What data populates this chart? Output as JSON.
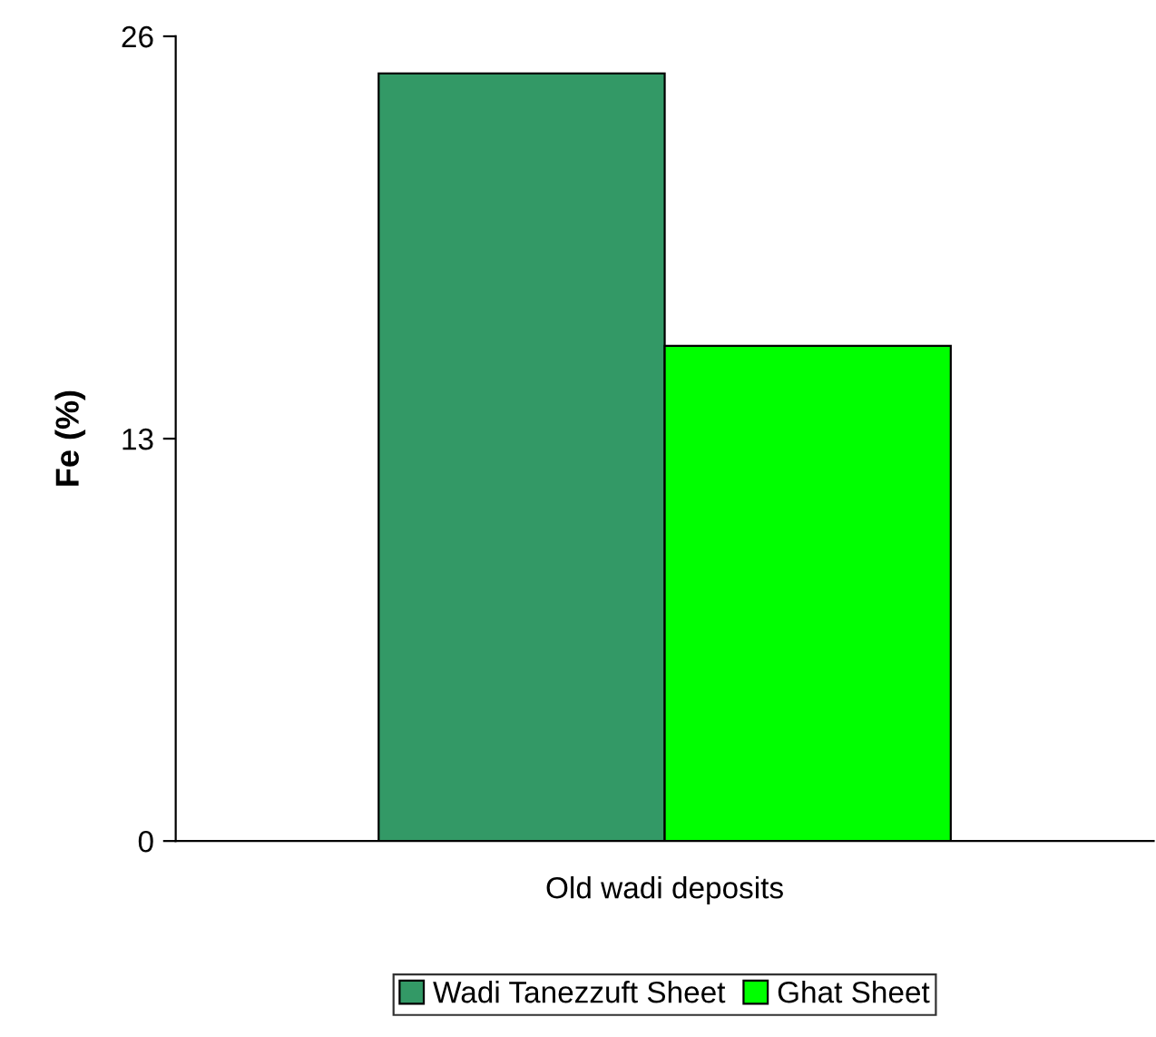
{
  "chart_data": {
    "type": "bar",
    "ylabel": "Fe (%)",
    "categories": [
      "Old wadi deposits"
    ],
    "series": [
      {
        "name": "Wadi Tanezzuft Sheet",
        "color": "#339966",
        "values": [
          24.8
        ]
      },
      {
        "name": "Ghat Sheet",
        "color": "#00ff00",
        "values": [
          16.0
        ]
      }
    ],
    "ylim": [
      0,
      26
    ],
    "yticks": [
      0,
      13,
      26
    ],
    "grid": false,
    "legend": "bottom"
  }
}
